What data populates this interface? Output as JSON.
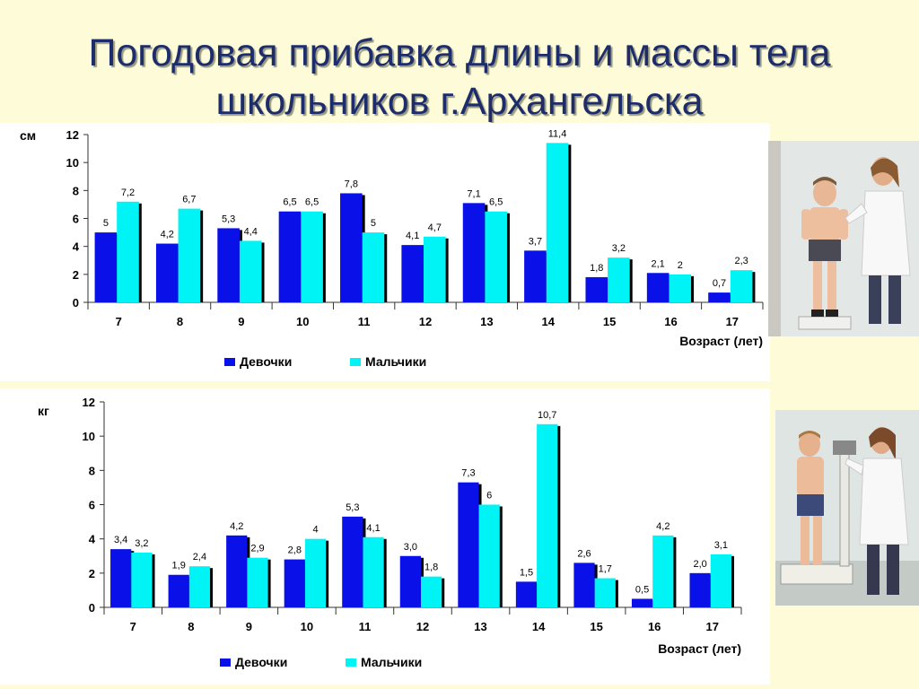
{
  "title_line1": "Погодовая прибавка длины и массы тела",
  "title_line2": "школьников г.Архангельска",
  "colors": {
    "girls": "#0a10e8",
    "boys": "#00f4f6",
    "shadow": "#000000"
  },
  "chart_data": [
    {
      "type": "bar",
      "ylabel": "см",
      "xlabel": "Возраст (лет)",
      "ylim": [
        0,
        12
      ],
      "yticks": [
        "0",
        "2",
        "4",
        "6",
        "8",
        "10",
        "12"
      ],
      "categories": [
        "7",
        "8",
        "9",
        "10",
        "11",
        "12",
        "13",
        "14",
        "15",
        "16",
        "17"
      ],
      "legend": "bottom-center",
      "series": [
        {
          "name": "Девочки",
          "values": [
            5,
            4.2,
            5.3,
            6.5,
            7.8,
            4.1,
            7.1,
            3.7,
            1.8,
            2.1,
            0.7
          ],
          "labels": [
            "5",
            "4,2",
            "5,3",
            "6,5",
            "7,8",
            "4,1",
            "7,1",
            "3,7",
            "1,8",
            "2,1",
            "0,7"
          ]
        },
        {
          "name": "Мальчики",
          "values": [
            7.2,
            6.7,
            4.4,
            6.5,
            5,
            4.7,
            6.5,
            11.4,
            3.2,
            2,
            2.3
          ],
          "labels": [
            "7,2",
            "6,7",
            "4,4",
            "6,5",
            "5",
            "4,7",
            "6,5",
            "11,4",
            "3,2",
            "2",
            "2,3"
          ]
        }
      ]
    },
    {
      "type": "bar",
      "ylabel": "кг",
      "xlabel": "Возраст (лет)",
      "ylim": [
        0,
        12
      ],
      "yticks": [
        "0",
        "2",
        "4",
        "6",
        "8",
        "10",
        "12"
      ],
      "categories": [
        "7",
        "8",
        "9",
        "10",
        "11",
        "12",
        "13",
        "14",
        "15",
        "16",
        "17"
      ],
      "legend": "bottom-center",
      "series": [
        {
          "name": "Девочки",
          "values": [
            3.4,
            1.9,
            4.2,
            2.8,
            5.3,
            3.0,
            7.3,
            1.5,
            2.6,
            0.5,
            2.0
          ],
          "labels": [
            "3,4",
            "1,9",
            "4,2",
            "2,8",
            "5,3",
            "3,0",
            "7,3",
            "1,5",
            "2,6",
            "0,5",
            "2,0"
          ]
        },
        {
          "name": "Мальчики",
          "values": [
            3.2,
            2.4,
            2.9,
            4,
            4.1,
            1.8,
            6,
            10.7,
            1.7,
            4.2,
            3.1
          ],
          "labels": [
            "3,2",
            "2,4",
            "2,9",
            "4",
            "4,1",
            "1,8",
            "6",
            "10,7",
            "1,7",
            "4,2",
            "3,1"
          ]
        }
      ]
    }
  ]
}
